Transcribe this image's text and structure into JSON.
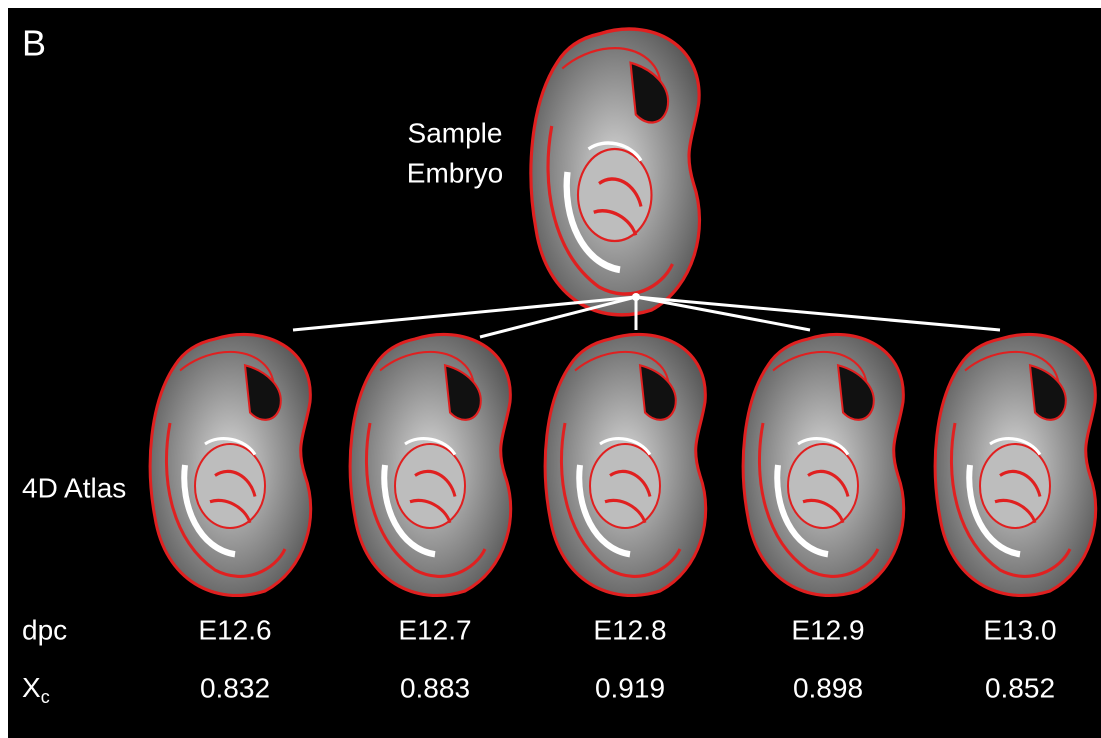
{
  "panel_label": "B",
  "sample": {
    "label_lines": [
      "Sample",
      "Embryo"
    ]
  },
  "atlas_label": "4D Atlas",
  "rows": {
    "dpc_label": "dpc",
    "xc_label": {
      "main": "X",
      "sub": "c"
    }
  },
  "columns": [
    {
      "dpc": "E12.6",
      "xc": "0.832"
    },
    {
      "dpc": "E12.7",
      "xc": "0.883"
    },
    {
      "dpc": "E12.8",
      "xc": "0.919"
    },
    {
      "dpc": "E12.9",
      "xc": "0.898"
    },
    {
      "dpc": "E13.0",
      "xc": "0.852"
    }
  ]
}
